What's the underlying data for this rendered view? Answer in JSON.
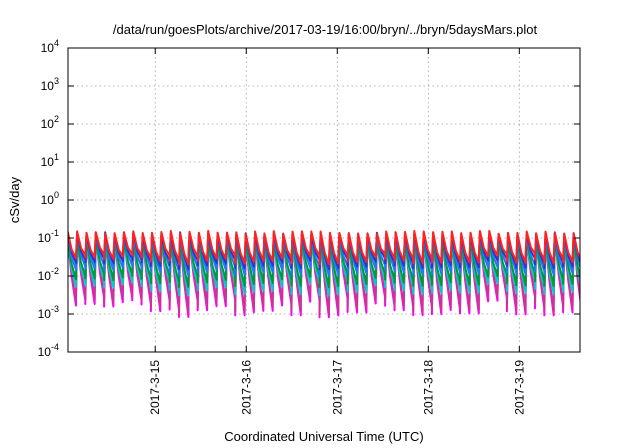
{
  "chart_data": {
    "type": "line",
    "title": "/data/run/goesPlots/archive/2017-03-19/16:00/bryn/../bryn/5daysMars.plot",
    "xlabel": "Coordinated Universal Time (UTC)",
    "ylabel": "cSv/day",
    "y_scale": "log",
    "ylim": [
      0.0001,
      10000
    ],
    "xlim": [
      "2017-03-14 01:00",
      "2017-03-19 16:00"
    ],
    "grid": true,
    "legend": "none",
    "x_ticks": [
      {
        "label": "2017-3-15",
        "value": "2017-03-15 00:00"
      },
      {
        "label": "2017-3-16",
        "value": "2017-03-16 00:00"
      },
      {
        "label": "2017-3-17",
        "value": "2017-03-17 00:00"
      },
      {
        "label": "2017-3-18",
        "value": "2017-03-18 00:00"
      },
      {
        "label": "2017-3-19",
        "value": "2017-03-19 00:00"
      }
    ],
    "y_ticks": [
      {
        "base": "10",
        "exp": "-4",
        "value": 0.0001
      },
      {
        "base": "10",
        "exp": "-3",
        "value": 0.001
      },
      {
        "base": "10",
        "exp": "-2",
        "value": 0.01
      },
      {
        "base": "10",
        "exp": "-1",
        "value": 0.1
      },
      {
        "base": "10",
        "exp": "0",
        "value": 1
      },
      {
        "base": "10",
        "exp": "1",
        "value": 10
      },
      {
        "base": "10",
        "exp": "2",
        "value": 100
      },
      {
        "base": "10",
        "exp": "3",
        "value": 1000
      },
      {
        "base": "10",
        "exp": "4",
        "value": 10000
      }
    ],
    "cycle_period_hours": 2.47,
    "series": [
      {
        "color": "#ff00ff",
        "peak": 0.1,
        "trough_range": [
          0.0008,
          0.003
        ]
      },
      {
        "color": "#cc3399",
        "peak": 0.1,
        "trough_range": [
          0.001,
          0.004
        ]
      },
      {
        "color": "#00cccc",
        "peak": 0.08,
        "trough_range": [
          0.003,
          0.008
        ]
      },
      {
        "color": "#009933",
        "peak": 0.09,
        "trough_range": [
          0.005,
          0.012
        ]
      },
      {
        "color": "#1f78ff",
        "peak": 0.12,
        "trough_range": [
          0.01,
          0.02
        ]
      },
      {
        "color": "#3333cc",
        "peak": 0.13,
        "trough_range": [
          0.015,
          0.03
        ]
      },
      {
        "color": "#ff2222",
        "peak": 0.14,
        "trough_range": [
          0.02,
          0.04
        ]
      }
    ]
  }
}
